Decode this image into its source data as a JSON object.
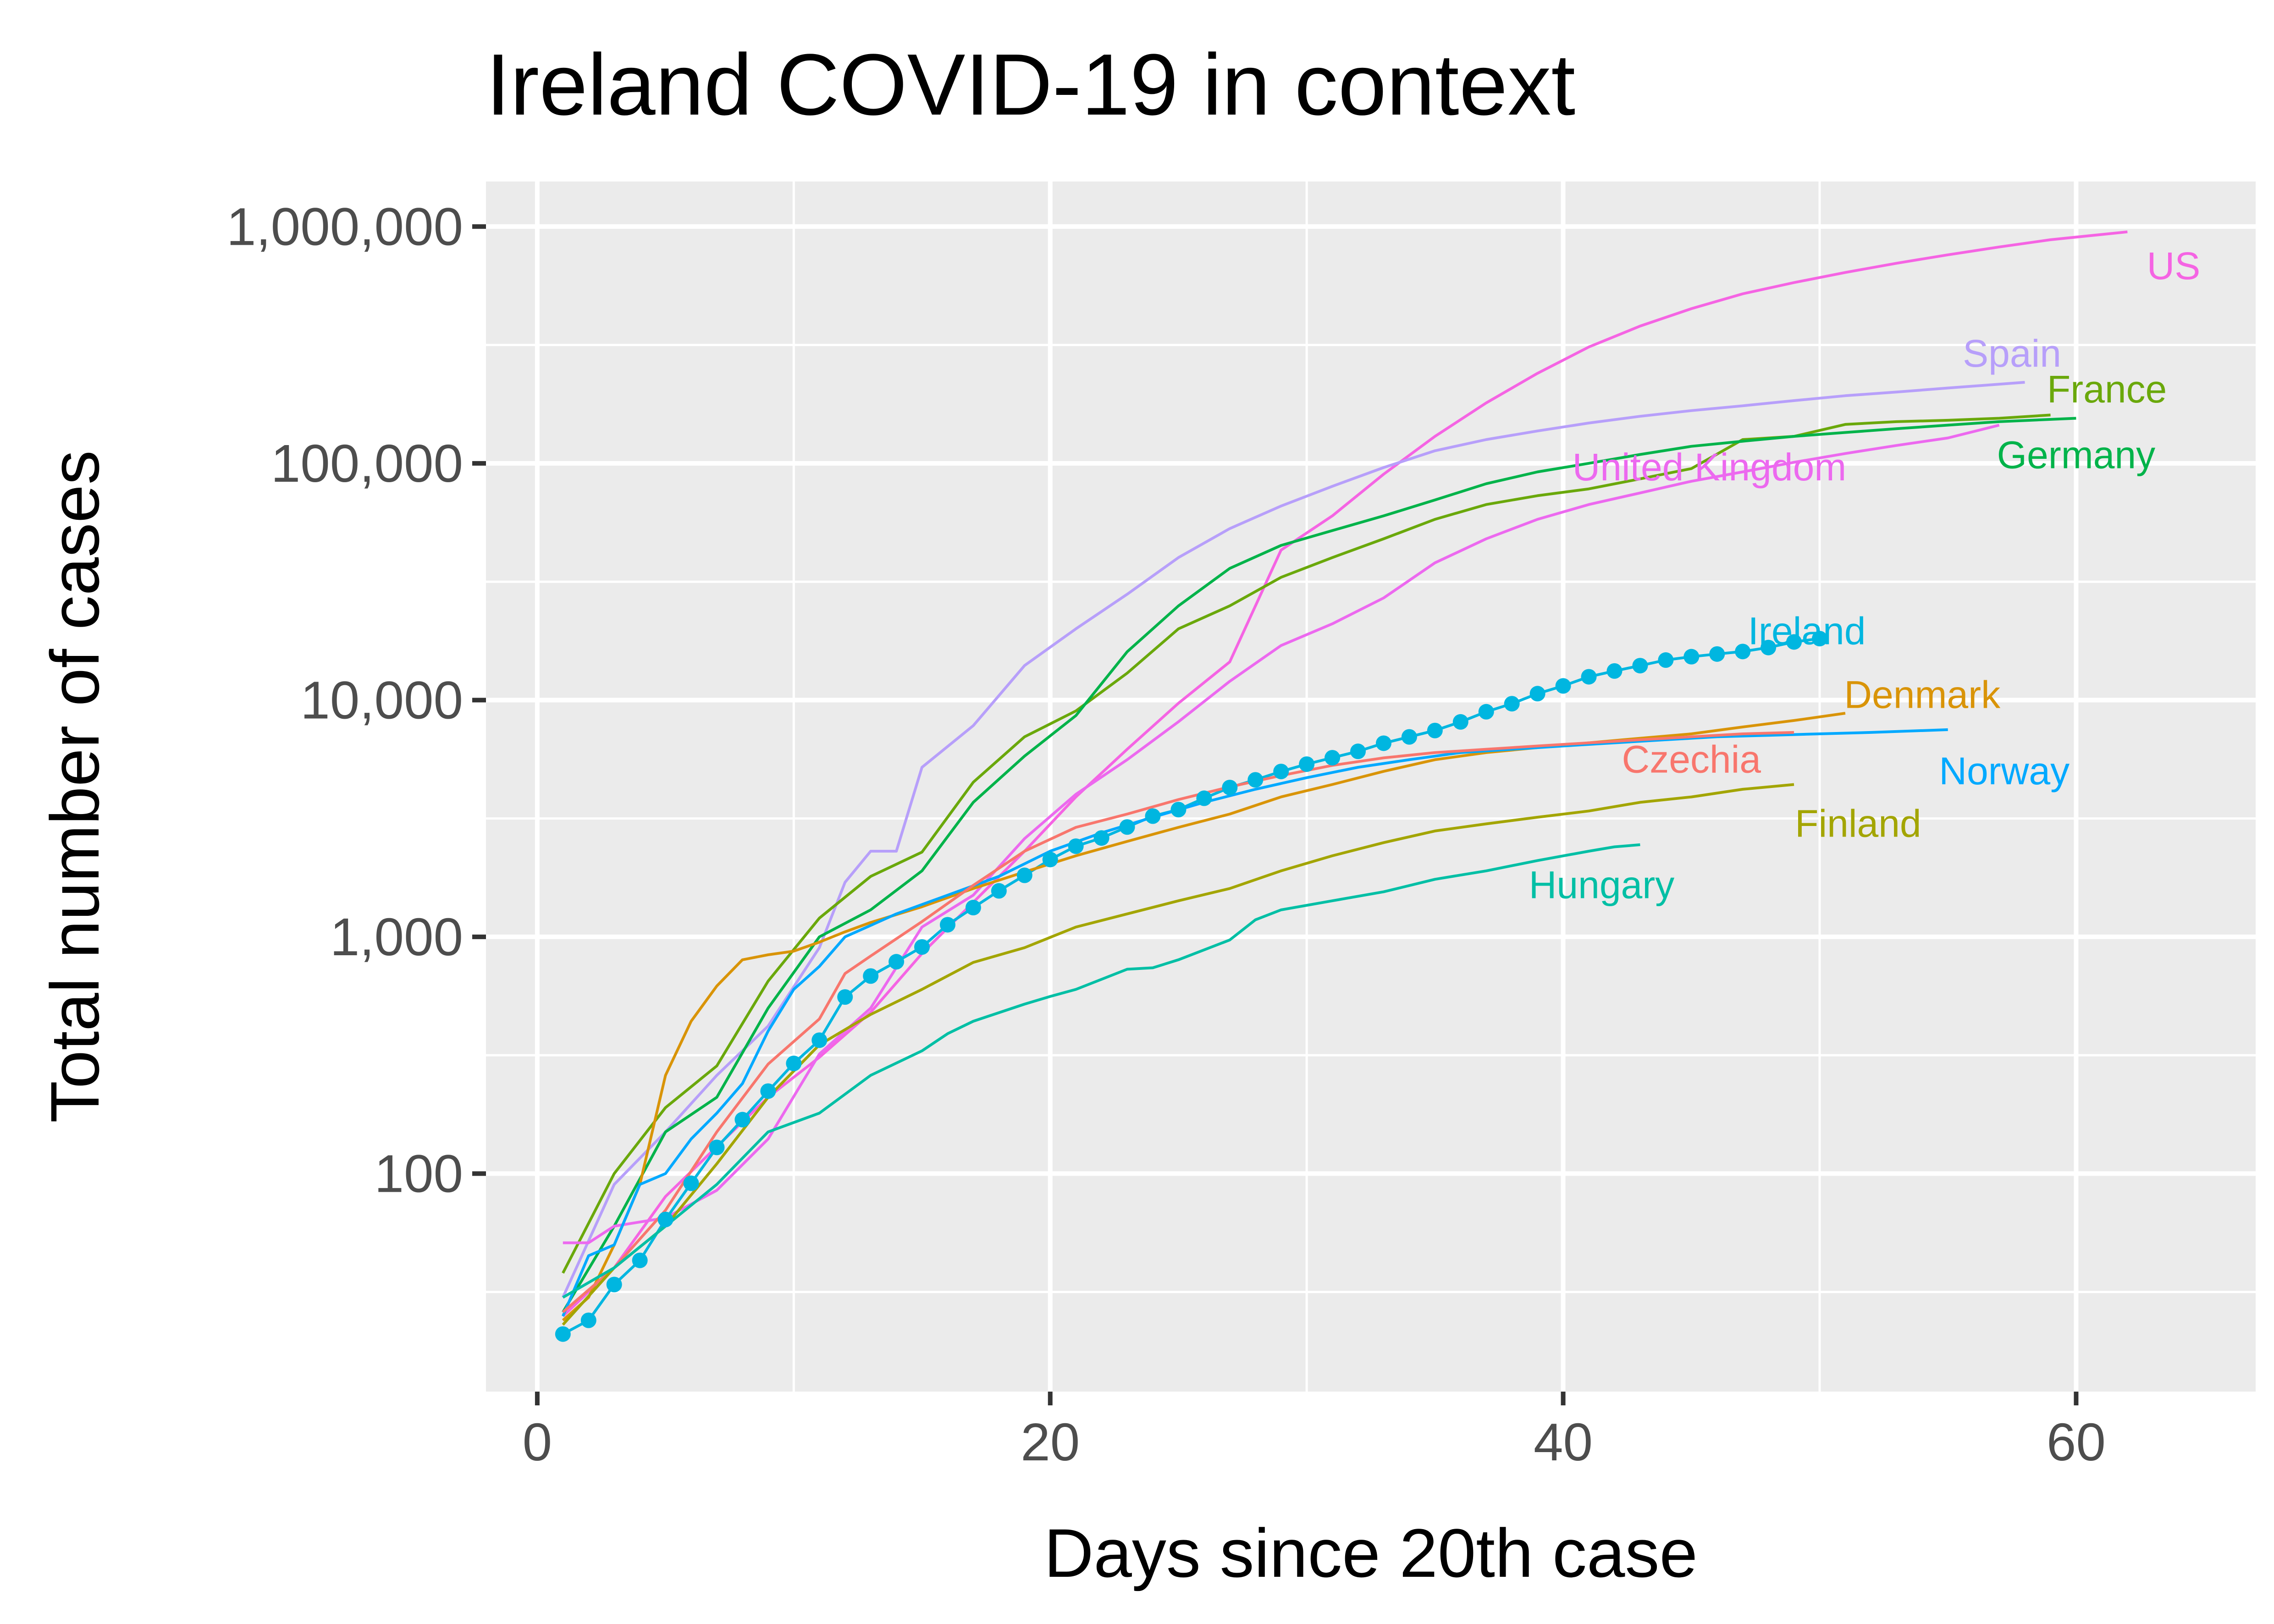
{
  "chart_data": {
    "type": "line",
    "title": "Ireland COVID-19 in context",
    "xlabel": "Days since 20th case",
    "ylabel": "Total number of cases",
    "y_scale": "log10",
    "xlim": [
      -2,
      67
    ],
    "ylim": [
      12,
      1550000
    ],
    "x_ticks": [
      0,
      20,
      40,
      60
    ],
    "x_tick_labels": [
      "0",
      "20",
      "40",
      "60"
    ],
    "y_ticks": [
      100,
      1000,
      10000,
      100000,
      1000000
    ],
    "y_tick_labels": [
      "100",
      "1,000",
      "10,000",
      "100,000",
      "1,000,000"
    ],
    "grid": true,
    "legend": "none (series labelled directly)",
    "background": "#ebebeb",
    "series": [
      {
        "name": "US",
        "color": "#f564e3",
        "label_x": 63.8,
        "label_y": 680000,
        "x": [
          1,
          3,
          5,
          7,
          9,
          11,
          13,
          15,
          17,
          19,
          21,
          23,
          25,
          27,
          29,
          31,
          33,
          35,
          37,
          39,
          41,
          43,
          45,
          47,
          49,
          51,
          53,
          55,
          57,
          59,
          62
        ],
        "y": [
          25,
          40,
          80,
          130,
          210,
          310,
          480,
          850,
          1400,
          2300,
          3900,
          6200,
          9700,
          14500,
          43000,
          60000,
          90000,
          130000,
          180000,
          240000,
          310000,
          380000,
          450000,
          520000,
          580000,
          640000,
          700000,
          760000,
          820000,
          880000,
          950000
        ]
      },
      {
        "name": "Spain",
        "color": "#b79ffa",
        "label_x": 57.5,
        "label_y": 290000,
        "x": [
          1,
          3,
          5,
          7,
          9,
          11,
          12,
          13,
          14,
          15,
          17,
          19,
          21,
          23,
          25,
          27,
          29,
          31,
          33,
          35,
          37,
          39,
          41,
          43,
          45,
          47,
          49,
          51,
          53,
          55,
          58
        ],
        "y": [
          30,
          90,
          150,
          260,
          420,
          900,
          1700,
          2300,
          2300,
          5200,
          7800,
          14000,
          20000,
          28000,
          40000,
          53000,
          66000,
          80000,
          96000,
          113000,
          126000,
          137000,
          148000,
          158000,
          167000,
          175000,
          184000,
          193000,
          200000,
          208000,
          220000
        ]
      },
      {
        "name": "France",
        "color": "#6aa80b",
        "label_x": 61.2,
        "label_y": 205000,
        "x": [
          1,
          3,
          5,
          7,
          9,
          11,
          13,
          15,
          17,
          19,
          21,
          23,
          25,
          27,
          29,
          31,
          33,
          35,
          37,
          39,
          41,
          43,
          45,
          47,
          49,
          51,
          53,
          55,
          57,
          59
        ],
        "y": [
          38,
          100,
          190,
          285,
          650,
          1200,
          1800,
          2280,
          4500,
          7000,
          9000,
          13000,
          20000,
          25000,
          33000,
          40000,
          48000,
          58000,
          67000,
          73000,
          78000,
          86000,
          95000,
          126000,
          130000,
          146000,
          150000,
          152000,
          155000,
          160000
        ]
      },
      {
        "name": "Germany",
        "color": "#00b34a",
        "label_x": 60,
        "label_y": 108000,
        "x": [
          1,
          3,
          5,
          7,
          9,
          11,
          13,
          15,
          17,
          19,
          21,
          23,
          25,
          27,
          29,
          31,
          33,
          35,
          37,
          39,
          41,
          43,
          45,
          47,
          49,
          51,
          53,
          55,
          57,
          60
        ],
        "y": [
          26,
          60,
          150,
          210,
          500,
          1000,
          1300,
          1900,
          3700,
          5800,
          8600,
          16000,
          25000,
          36000,
          45000,
          52000,
          60000,
          70000,
          82000,
          92000,
          100000,
          109000,
          118000,
          124000,
          130000,
          135000,
          140000,
          145000,
          150000,
          155000
        ]
      },
      {
        "name": "United Kingdom",
        "color": "#ec69ef",
        "label_x": 45.7,
        "label_y": 96000,
        "x": [
          1,
          2,
          3,
          5,
          7,
          9,
          11,
          13,
          15,
          17,
          19,
          21,
          23,
          25,
          27,
          29,
          31,
          33,
          35,
          37,
          39,
          41,
          43,
          45,
          47,
          49,
          51,
          53,
          55,
          57
        ],
        "y": [
          51,
          51,
          60,
          65,
          85,
          140,
          320,
          500,
          1100,
          1500,
          2600,
          4000,
          5600,
          8100,
          12000,
          17000,
          21000,
          27000,
          38000,
          48000,
          58000,
          67000,
          75000,
          84000,
          92000,
          101000,
          110000,
          119000,
          128000,
          145000
        ]
      },
      {
        "name": "Ireland",
        "color": "#00b6e0",
        "label_x": 49.5,
        "label_y": 19500,
        "markers": true,
        "x": [
          1,
          2,
          3,
          4,
          5,
          6,
          7,
          8,
          9,
          10,
          11,
          12,
          13,
          14,
          15,
          16,
          17,
          18,
          19,
          20,
          21,
          22,
          23,
          24,
          25,
          26,
          27,
          28,
          29,
          30,
          31,
          32,
          33,
          34,
          35,
          36,
          37,
          38,
          39,
          40,
          41,
          42,
          43,
          44,
          45,
          46,
          47,
          48,
          49,
          50
        ],
        "y": [
          21,
          24,
          34,
          43,
          64,
          91,
          129,
          169,
          223,
          292,
          366,
          557,
          683,
          785,
          906,
          1125,
          1329,
          1564,
          1819,
          2121,
          2415,
          2615,
          2910,
          3235,
          3447,
          3849,
          4273,
          4604,
          4994,
          5364,
          5709,
          6074,
          6574,
          6992,
          7438,
          8089,
          8928,
          9655,
          10647,
          11479,
          12547,
          13271,
          13980,
          14758,
          15251,
          15652,
          16040,
          16671,
          17607,
          18184
        ]
      },
      {
        "name": "Denmark",
        "color": "#d99408",
        "label_x": 54,
        "label_y": 10500,
        "x": [
          1,
          2,
          3,
          4,
          5,
          6,
          7,
          8,
          9,
          10,
          11,
          12,
          13,
          15,
          17,
          19,
          21,
          23,
          25,
          27,
          29,
          31,
          33,
          35,
          37,
          39,
          41,
          43,
          45,
          47,
          49,
          51
        ],
        "y": [
          24,
          30,
          50,
          90,
          260,
          440,
          620,
          800,
          840,
          870,
          950,
          1050,
          1150,
          1340,
          1600,
          1880,
          2200,
          2530,
          2900,
          3300,
          3900,
          4400,
          5000,
          5600,
          6000,
          6300,
          6600,
          6900,
          7200,
          7700,
          8200,
          8800
        ]
      },
      {
        "name": "Norway",
        "color": "#00a9ff",
        "label_x": 57.2,
        "label_y": 5000,
        "x": [
          1,
          2,
          3,
          4,
          5,
          6,
          7,
          8,
          9,
          10,
          11,
          12,
          14,
          16,
          18,
          20,
          22,
          24,
          26,
          28,
          30,
          32,
          34,
          36,
          38,
          40,
          42,
          44,
          46,
          48,
          50,
          52,
          55
        ],
        "y": [
          25,
          45,
          50,
          90,
          100,
          140,
          180,
          240,
          400,
          600,
          750,
          1000,
          1250,
          1500,
          1800,
          2300,
          2750,
          3200,
          3700,
          4200,
          4700,
          5200,
          5600,
          6000,
          6200,
          6400,
          6600,
          6800,
          7000,
          7100,
          7200,
          7300,
          7500
        ]
      },
      {
        "name": "Czechia",
        "color": "#f8766d",
        "label_x": 45,
        "label_y": 5600,
        "x": [
          1,
          3,
          5,
          7,
          9,
          11,
          12,
          13,
          15,
          17,
          19,
          21,
          23,
          25,
          27,
          29,
          31,
          33,
          35,
          37,
          39,
          41,
          43,
          45,
          47,
          49
        ],
        "y": [
          26,
          40,
          70,
          150,
          290,
          450,
          700,
          830,
          1160,
          1650,
          2300,
          2900,
          3300,
          3800,
          4300,
          4800,
          5300,
          5700,
          6000,
          6200,
          6400,
          6600,
          6800,
          7000,
          7200,
          7300
        ]
      },
      {
        "name": "Finland",
        "color": "#a3a500",
        "label_x": 51.5,
        "label_y": 3000,
        "x": [
          1,
          3,
          5,
          7,
          9,
          11,
          13,
          15,
          17,
          19,
          21,
          23,
          25,
          27,
          29,
          31,
          33,
          35,
          37,
          39,
          41,
          43,
          45,
          47,
          49
        ],
        "y": [
          23,
          40,
          60,
          110,
          210,
          350,
          470,
          600,
          780,
          900,
          1100,
          1250,
          1420,
          1600,
          1900,
          2200,
          2500,
          2800,
          3000,
          3200,
          3400,
          3700,
          3900,
          4200,
          4400
        ]
      },
      {
        "name": "Hungary",
        "color": "#00bfa5",
        "label_x": 41.5,
        "label_y": 1650,
        "x": [
          1,
          3,
          5,
          7,
          9,
          11,
          13,
          15,
          16,
          17,
          19,
          20,
          21,
          23,
          24,
          25,
          27,
          28,
          29,
          31,
          33,
          35,
          37,
          39,
          41,
          42,
          43
        ],
        "y": [
          30,
          40,
          60,
          90,
          150,
          180,
          260,
          330,
          390,
          440,
          520,
          560,
          600,
          730,
          740,
          800,
          970,
          1180,
          1300,
          1420,
          1550,
          1750,
          1900,
          2100,
          2300,
          2400,
          2450
        ]
      }
    ]
  }
}
